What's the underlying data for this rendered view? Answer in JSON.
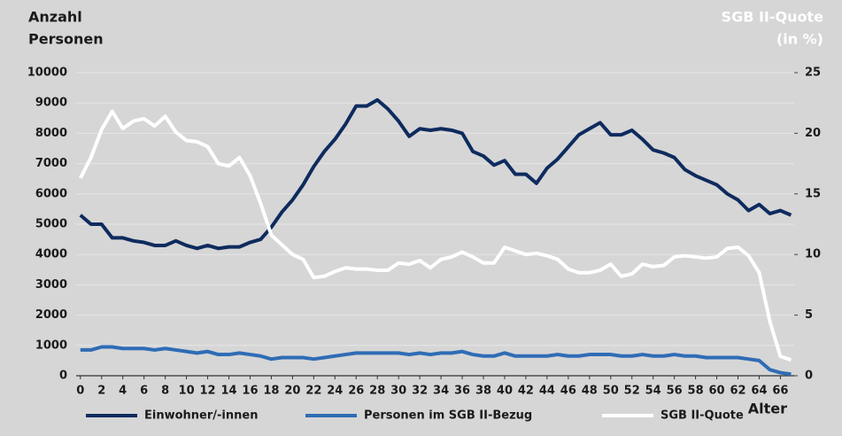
{
  "chart_data": {
    "type": "line",
    "y_label": [
      "Anzahl",
      "Personen"
    ],
    "y2_label": [
      "SGB II-Quote",
      "(in %)"
    ],
    "x_label": "Alter",
    "x": [
      0,
      1,
      2,
      3,
      4,
      5,
      6,
      7,
      8,
      9,
      10,
      11,
      12,
      13,
      14,
      15,
      16,
      17,
      18,
      19,
      20,
      21,
      22,
      23,
      24,
      25,
      26,
      27,
      28,
      29,
      30,
      31,
      32,
      33,
      34,
      35,
      36,
      37,
      38,
      39,
      40,
      41,
      42,
      43,
      44,
      45,
      46,
      47,
      48,
      49,
      50,
      51,
      52,
      53,
      54,
      55,
      56,
      57,
      58,
      59,
      60,
      61,
      62,
      63,
      64,
      65,
      66,
      67
    ],
    "xlim": [
      -0.4,
      67.3
    ],
    "xticks": [
      0,
      2,
      4,
      6,
      8,
      10,
      12,
      14,
      16,
      18,
      20,
      22,
      24,
      26,
      28,
      30,
      32,
      34,
      36,
      38,
      40,
      42,
      44,
      46,
      48,
      50,
      52,
      54,
      56,
      58,
      60,
      62,
      64,
      66
    ],
    "ylim": [
      0,
      10000
    ],
    "yticks": [
      0,
      1000,
      2000,
      3000,
      4000,
      5000,
      6000,
      7000,
      8000,
      9000,
      10000
    ],
    "y2lim": [
      0,
      25
    ],
    "y2ticks": [
      0,
      5,
      10,
      15,
      20,
      25
    ],
    "grid": true,
    "legend": "bottom",
    "series": [
      {
        "name": "Einwohner/-innen",
        "color": "#0e2b5e",
        "values": [
          5300,
          5000,
          5000,
          4550,
          4550,
          4450,
          4400,
          4300,
          4300,
          4450,
          4300,
          4200,
          4300,
          4200,
          4250,
          4250,
          4400,
          4500,
          4900,
          5400,
          5800,
          6300,
          6900,
          7400,
          7800,
          8300,
          8900,
          8900,
          9100,
          8800,
          8400,
          7900,
          8150,
          8100,
          8150,
          8100,
          8000,
          7400,
          7250,
          6950,
          7100,
          6650,
          6650,
          6350,
          6850,
          7150,
          7550,
          7950,
          8150,
          8350,
          7950,
          7950,
          8100,
          7800,
          7450,
          7350,
          7200,
          6800,
          6600,
          6450,
          6300,
          6000,
          5800,
          5450,
          5650,
          5350,
          5450,
          5300
        ]
      },
      {
        "name": "Personen im SGB II-Bezug",
        "color": "#2f6cb5",
        "values": [
          850,
          850,
          950,
          950,
          900,
          900,
          900,
          850,
          900,
          850,
          800,
          750,
          800,
          700,
          700,
          750,
          700,
          650,
          550,
          600,
          600,
          600,
          550,
          600,
          650,
          700,
          750,
          750,
          750,
          750,
          750,
          700,
          750,
          700,
          750,
          750,
          800,
          700,
          650,
          650,
          750,
          650,
          650,
          650,
          650,
          700,
          650,
          650,
          700,
          700,
          700,
          650,
          650,
          700,
          650,
          650,
          700,
          650,
          650,
          600,
          600,
          600,
          600,
          550,
          500,
          200,
          100,
          50
        ]
      },
      {
        "name": "SGB II-Quote",
        "color": "#ffffff",
        "axis": "y2",
        "values": [
          16.3,
          18,
          20.3,
          21.8,
          20.4,
          21,
          21.2,
          20.6,
          21.4,
          20.1,
          19.4,
          19.3,
          18.9,
          17.5,
          17.3,
          18,
          16.5,
          14.2,
          11.6,
          10.8,
          10,
          9.6,
          8.1,
          8.2,
          8.6,
          8.9,
          8.8,
          8.8,
          8.7,
          8.7,
          9.3,
          9.2,
          9.5,
          8.9,
          9.6,
          9.8,
          10.2,
          9.8,
          9.3,
          9.3,
          10.6,
          10.3,
          10,
          10.1,
          9.9,
          9.6,
          8.8,
          8.5,
          8.5,
          8.7,
          9.2,
          8.2,
          8.4,
          9.2,
          9,
          9.1,
          9.8,
          9.9,
          9.8,
          9.7,
          9.8,
          10.5,
          10.6,
          9.9,
          8.5,
          4.5,
          1.6,
          1.3
        ]
      }
    ]
  }
}
